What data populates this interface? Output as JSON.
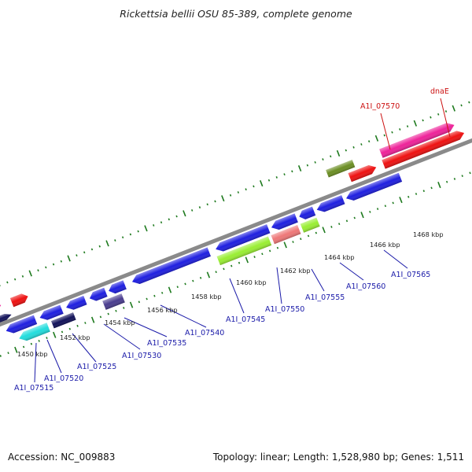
{
  "title": "Rickettsia bellii OSU 85-389, complete genome",
  "footer": {
    "accession": "Accession: NC_009883",
    "summary": "Topology: linear; Length: 1,528,980 bp; Genes: 1,511"
  },
  "colors": {
    "backbone": "#8a8a8a",
    "tick": "#1e7a1e",
    "blue_gene": "#1f1fe0",
    "label_blue": "#1a1aa8",
    "label_red": "#cc1111",
    "olive": "#6b8e23",
    "magenta": "#ee2299",
    "red": "#ee1111",
    "lime": "#99ee33",
    "salmon": "#ee7777",
    "cyan": "#22dddd",
    "navy": "#12125a",
    "slate": "#4a3d8f"
  },
  "scale_labels": [
    "1450 kbp",
    "1452 kbp",
    "1454 kbp",
    "1456 kbp",
    "1458 kbp",
    "1460 kbp",
    "1462 kbp",
    "1464 kbp",
    "1466 kbp",
    "1468 kbp"
  ],
  "gene_labels": [
    {
      "text": "A1I_07515",
      "color": "blue"
    },
    {
      "text": "A1I_07520",
      "color": "blue"
    },
    {
      "text": "A1I_07525",
      "color": "blue"
    },
    {
      "text": "A1I_07530",
      "color": "blue"
    },
    {
      "text": "A1I_07535",
      "color": "blue"
    },
    {
      "text": "A1I_07540",
      "color": "blue"
    },
    {
      "text": "A1I_07545",
      "color": "blue"
    },
    {
      "text": "A1I_07550",
      "color": "blue"
    },
    {
      "text": "A1I_07555",
      "color": "blue"
    },
    {
      "text": "A1I_07560",
      "color": "blue"
    },
    {
      "text": "A1I_07565",
      "color": "blue"
    },
    {
      "text": "A1I_07570",
      "color": "red"
    },
    {
      "text": "dnaE",
      "color": "red"
    }
  ]
}
